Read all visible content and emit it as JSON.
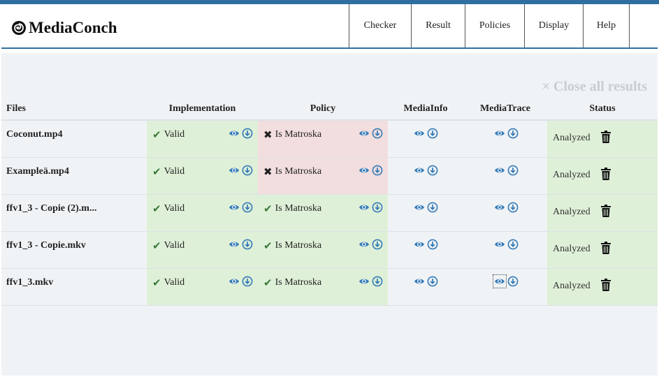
{
  "app": {
    "brand": "MediaConch"
  },
  "nav": {
    "items": [
      "Checker",
      "Result",
      "Policies",
      "Display",
      "Help"
    ]
  },
  "toolbar": {
    "close_all": "× Close all results"
  },
  "table": {
    "headers": {
      "files": "Files",
      "implementation": "Implementation",
      "policy": "Policy",
      "mediainfo": "MediaInfo",
      "mediatrace": "MediaTrace",
      "status": "Status"
    },
    "rows": [
      {
        "file": "Coconut.mp4",
        "implementation": "Valid",
        "policy": "Is Matroska",
        "policy_ok": false,
        "status": "Analyzed"
      },
      {
        "file": "Exampleä.mp4",
        "implementation": "Valid",
        "policy": "Is Matroska",
        "policy_ok": false,
        "status": "Analyzed"
      },
      {
        "file": "ffv1_3 - Copie (2).m...",
        "implementation": "Valid",
        "policy": "Is Matroska",
        "policy_ok": true,
        "status": "Analyzed"
      },
      {
        "file": "ffv1_3 - Copie.mkv",
        "implementation": "Valid",
        "policy": "Is Matroska",
        "policy_ok": true,
        "status": "Analyzed"
      },
      {
        "file": "ffv1_3.mkv",
        "implementation": "Valid",
        "policy": "Is Matroska",
        "policy_ok": true,
        "status": "Analyzed"
      }
    ]
  },
  "colors": {
    "accent": "#2f6fa0",
    "ok_bg": "#dff0d8",
    "bad_bg": "#f2dede",
    "icon": "#337ab7"
  },
  "icons": {
    "view": "eye-icon",
    "download": "download-icon",
    "delete": "trash-icon",
    "valid": "check-icon",
    "invalid": "cross-icon"
  }
}
